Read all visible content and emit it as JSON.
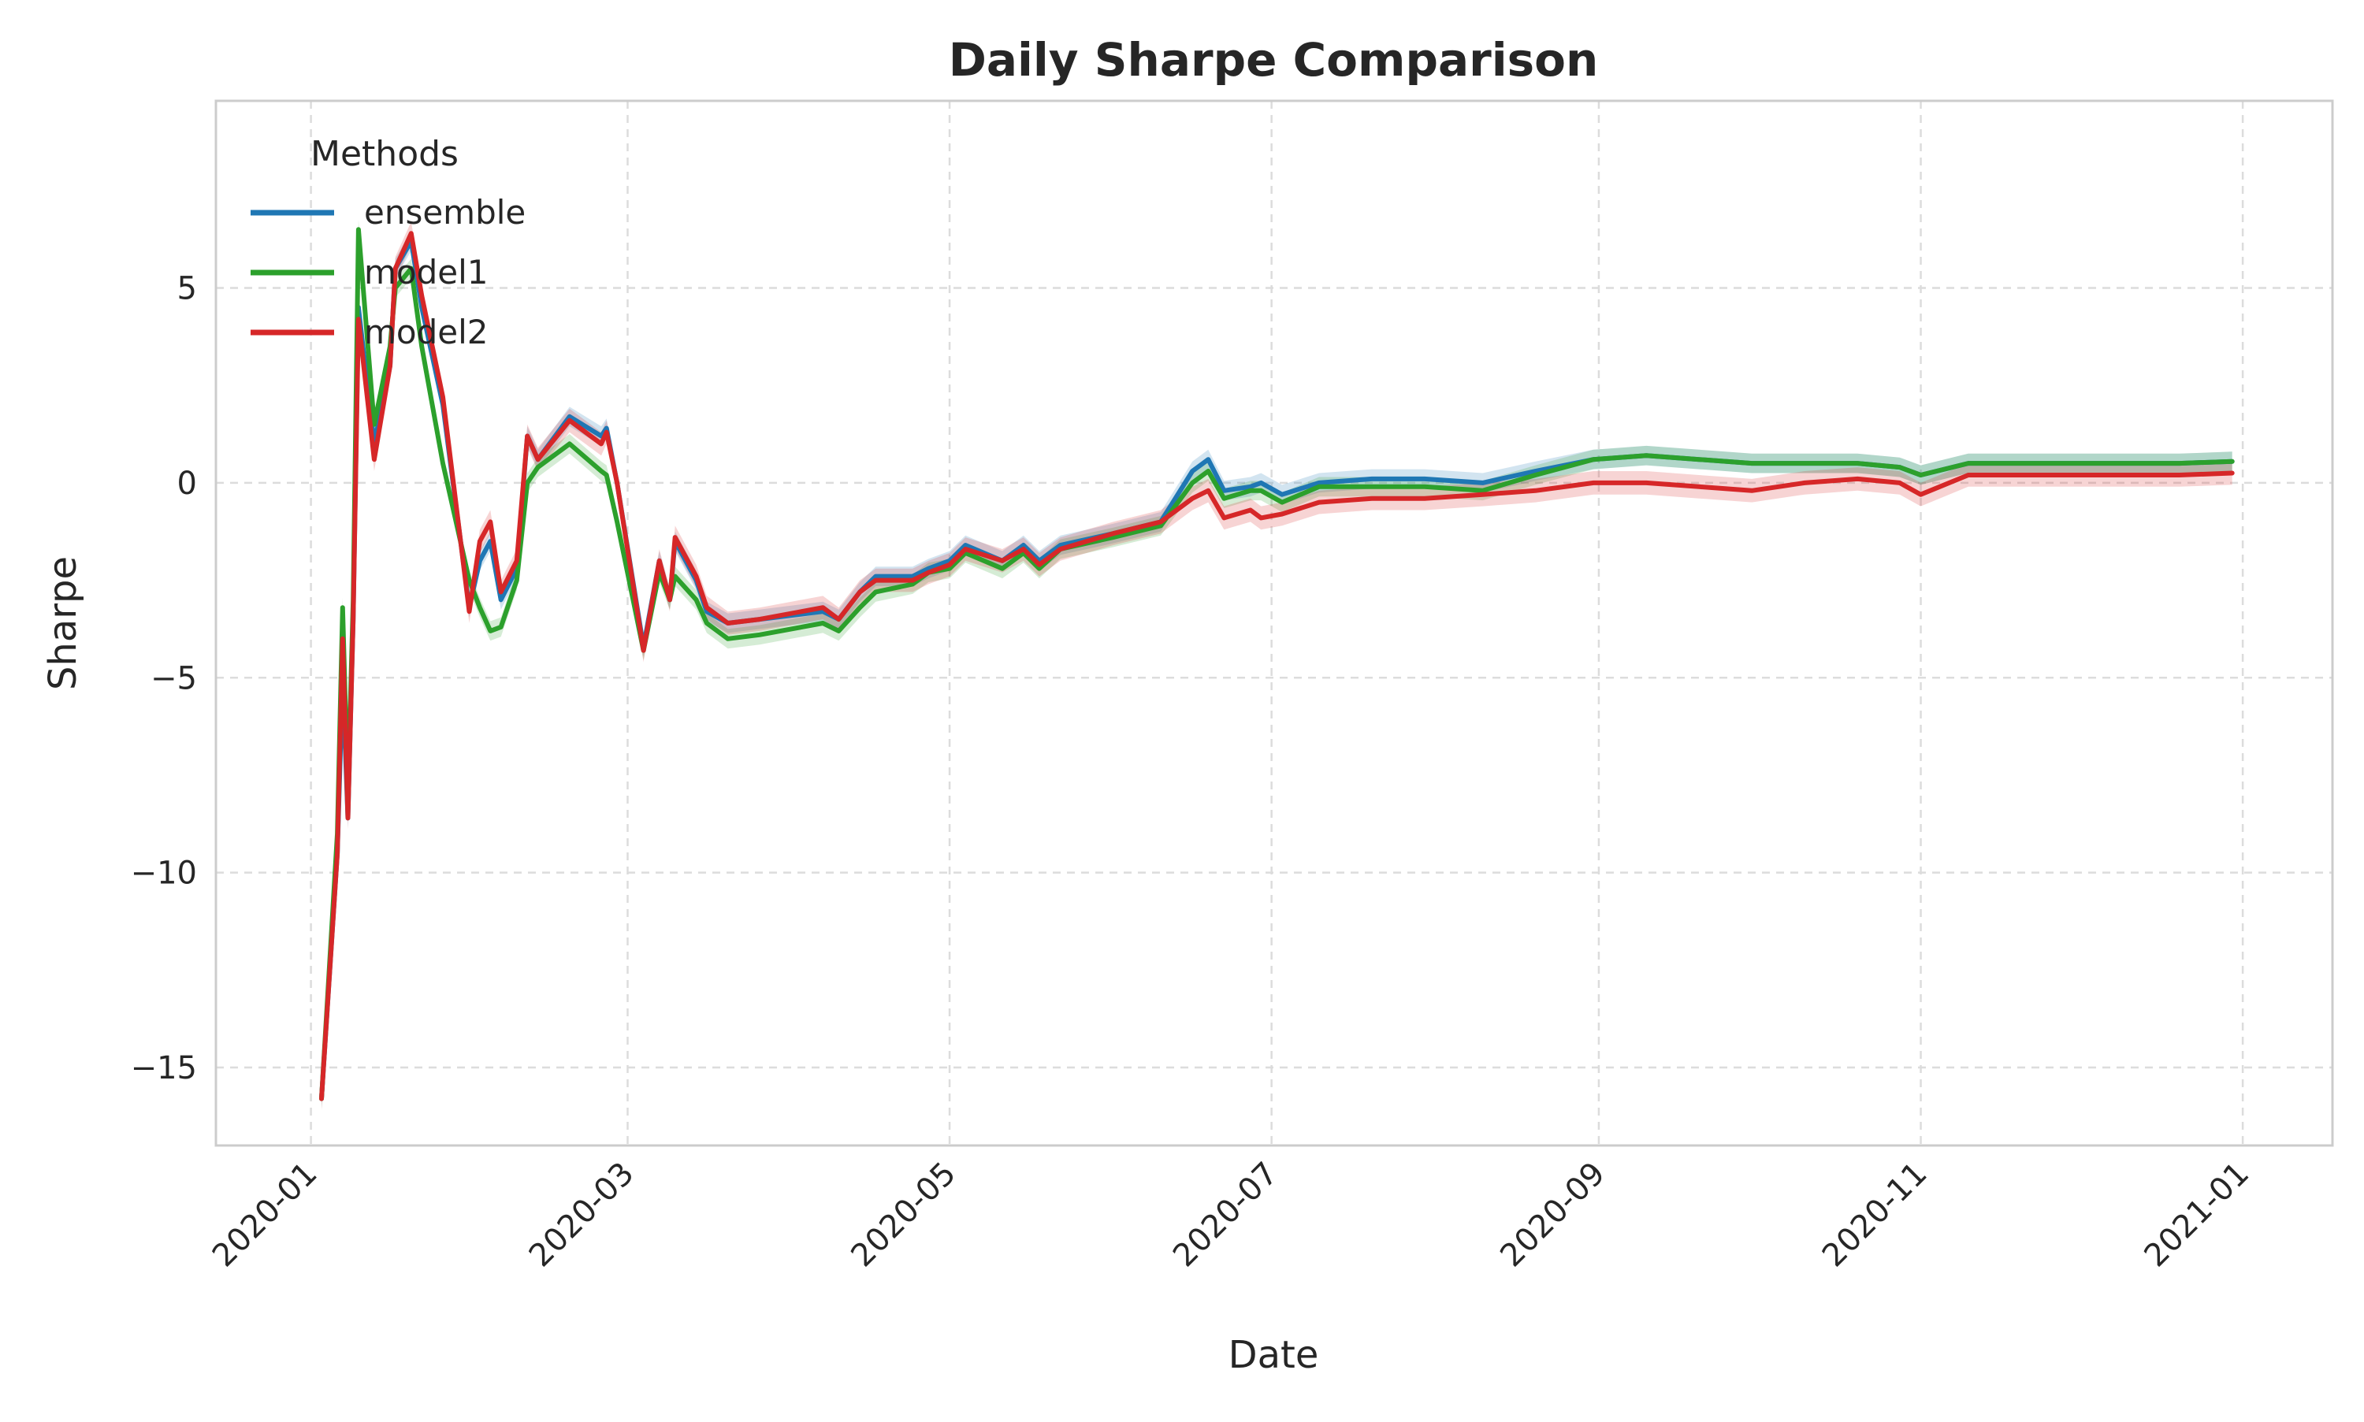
{
  "chart_data": {
    "type": "line",
    "title": "Daily Sharpe Comparison",
    "xlabel": "Date",
    "ylabel": "Sharpe",
    "x_axis_type": "date",
    "xlim": [
      "2019-12-14",
      "2021-01-18"
    ],
    "ylim": [
      -17,
      9.8
    ],
    "x_ticks": [
      "2020-01",
      "2020-03",
      "2020-05",
      "2020-07",
      "2020-09",
      "2020-11",
      "2021-01"
    ],
    "x_tick_dates": [
      "2020-01-01",
      "2020-03-01",
      "2020-05-01",
      "2020-07-01",
      "2020-09-01",
      "2020-11-01",
      "2021-01-01"
    ],
    "y_ticks": [
      -15,
      -10,
      -5,
      0,
      5
    ],
    "y_tick_labels": [
      "−15",
      "−10",
      "−5",
      "0",
      "5"
    ],
    "grid": true,
    "legend": {
      "title": "Methods",
      "placement": "top-left"
    },
    "series": [
      {
        "name": "ensemble",
        "color": "#1f77b4",
        "band_halfwidth": 0.25,
        "points": [
          [
            "2020-01-03",
            -15.8
          ],
          [
            "2020-01-06",
            -9.5
          ],
          [
            "2020-01-07",
            -5.0
          ],
          [
            "2020-01-08",
            -8.6
          ],
          [
            "2020-01-09",
            -3.5
          ],
          [
            "2020-01-10",
            4.5
          ],
          [
            "2020-01-13",
            1.0
          ],
          [
            "2020-01-16",
            3.0
          ],
          [
            "2020-01-17",
            5.5
          ],
          [
            "2020-01-20",
            6.2
          ],
          [
            "2020-01-22",
            4.5
          ],
          [
            "2020-01-26",
            2.0
          ],
          [
            "2020-01-31",
            -3.2
          ],
          [
            "2020-02-02",
            -2.0
          ],
          [
            "2020-02-04",
            -1.5
          ],
          [
            "2020-02-06",
            -3.0
          ],
          [
            "2020-02-09",
            -2.2
          ],
          [
            "2020-02-11",
            1.2
          ],
          [
            "2020-02-13",
            0.6
          ],
          [
            "2020-02-19",
            1.7
          ],
          [
            "2020-02-25",
            1.2
          ],
          [
            "2020-02-26",
            1.4
          ],
          [
            "2020-02-28",
            0.0
          ],
          [
            "2020-03-04",
            -4.2
          ],
          [
            "2020-03-07",
            -2.0
          ],
          [
            "2020-03-09",
            -3.0
          ],
          [
            "2020-03-10",
            -1.5
          ],
          [
            "2020-03-14",
            -2.5
          ],
          [
            "2020-03-16",
            -3.3
          ],
          [
            "2020-03-20",
            -3.6
          ],
          [
            "2020-03-26",
            -3.5
          ],
          [
            "2020-04-07",
            -3.3
          ],
          [
            "2020-04-10",
            -3.5
          ],
          [
            "2020-04-14",
            -2.8
          ],
          [
            "2020-04-17",
            -2.4
          ],
          [
            "2020-04-24",
            -2.4
          ],
          [
            "2020-04-27",
            -2.2
          ],
          [
            "2020-05-01",
            -2.0
          ],
          [
            "2020-05-04",
            -1.6
          ],
          [
            "2020-05-11",
            -2.0
          ],
          [
            "2020-05-15",
            -1.6
          ],
          [
            "2020-05-18",
            -2.0
          ],
          [
            "2020-05-22",
            -1.6
          ],
          [
            "2020-06-01",
            -1.3
          ],
          [
            "2020-06-10",
            -1.0
          ],
          [
            "2020-06-16",
            0.3
          ],
          [
            "2020-06-19",
            0.6
          ],
          [
            "2020-06-22",
            -0.2
          ],
          [
            "2020-06-27",
            -0.1
          ],
          [
            "2020-06-29",
            0.0
          ],
          [
            "2020-07-03",
            -0.3
          ],
          [
            "2020-07-10",
            0.0
          ],
          [
            "2020-07-20",
            0.1
          ],
          [
            "2020-07-30",
            0.1
          ],
          [
            "2020-08-10",
            0.0
          ],
          [
            "2020-08-20",
            0.3
          ],
          [
            "2020-08-31",
            0.6
          ],
          [
            "2020-09-10",
            0.7
          ],
          [
            "2020-09-20",
            0.6
          ],
          [
            "2020-09-30",
            0.5
          ],
          [
            "2020-10-10",
            0.5
          ],
          [
            "2020-10-20",
            0.5
          ],
          [
            "2020-10-28",
            0.4
          ],
          [
            "2020-11-01",
            0.2
          ],
          [
            "2020-11-10",
            0.5
          ],
          [
            "2020-11-20",
            0.5
          ],
          [
            "2020-12-01",
            0.5
          ],
          [
            "2020-12-10",
            0.5
          ],
          [
            "2020-12-20",
            0.5
          ],
          [
            "2020-12-30",
            0.55
          ]
        ]
      },
      {
        "name": "model1",
        "color": "#2ca02c",
        "band_halfwidth": 0.25,
        "points": [
          [
            "2020-01-03",
            -15.8
          ],
          [
            "2020-01-06",
            -9.0
          ],
          [
            "2020-01-07",
            -3.2
          ],
          [
            "2020-01-08",
            -8.0
          ],
          [
            "2020-01-09",
            -3.0
          ],
          [
            "2020-01-10",
            6.5
          ],
          [
            "2020-01-13",
            1.5
          ],
          [
            "2020-01-16",
            3.5
          ],
          [
            "2020-01-17",
            5.0
          ],
          [
            "2020-01-20",
            5.5
          ],
          [
            "2020-01-22",
            3.5
          ],
          [
            "2020-01-26",
            0.5
          ],
          [
            "2020-01-31",
            -2.5
          ],
          [
            "2020-02-02",
            -3.2
          ],
          [
            "2020-02-04",
            -3.8
          ],
          [
            "2020-02-06",
            -3.7
          ],
          [
            "2020-02-09",
            -2.5
          ],
          [
            "2020-02-11",
            0.0
          ],
          [
            "2020-02-13",
            0.4
          ],
          [
            "2020-02-19",
            1.0
          ],
          [
            "2020-02-25",
            0.3
          ],
          [
            "2020-02-26",
            0.2
          ],
          [
            "2020-02-28",
            -1.0
          ],
          [
            "2020-03-04",
            -4.3
          ],
          [
            "2020-03-07",
            -2.3
          ],
          [
            "2020-03-09",
            -3.0
          ],
          [
            "2020-03-10",
            -2.4
          ],
          [
            "2020-03-14",
            -3.0
          ],
          [
            "2020-03-16",
            -3.6
          ],
          [
            "2020-03-20",
            -4.0
          ],
          [
            "2020-03-26",
            -3.9
          ],
          [
            "2020-04-07",
            -3.6
          ],
          [
            "2020-04-10",
            -3.8
          ],
          [
            "2020-04-14",
            -3.2
          ],
          [
            "2020-04-17",
            -2.8
          ],
          [
            "2020-04-24",
            -2.6
          ],
          [
            "2020-04-27",
            -2.3
          ],
          [
            "2020-05-01",
            -2.2
          ],
          [
            "2020-05-04",
            -1.8
          ],
          [
            "2020-05-11",
            -2.2
          ],
          [
            "2020-05-15",
            -1.8
          ],
          [
            "2020-05-18",
            -2.2
          ],
          [
            "2020-05-22",
            -1.7
          ],
          [
            "2020-06-01",
            -1.4
          ],
          [
            "2020-06-10",
            -1.1
          ],
          [
            "2020-06-16",
            0.0
          ],
          [
            "2020-06-19",
            0.3
          ],
          [
            "2020-06-22",
            -0.4
          ],
          [
            "2020-06-27",
            -0.2
          ],
          [
            "2020-06-29",
            -0.2
          ],
          [
            "2020-07-03",
            -0.5
          ],
          [
            "2020-07-10",
            -0.1
          ],
          [
            "2020-07-20",
            -0.1
          ],
          [
            "2020-07-30",
            -0.1
          ],
          [
            "2020-08-10",
            -0.2
          ],
          [
            "2020-08-20",
            0.2
          ],
          [
            "2020-08-31",
            0.6
          ],
          [
            "2020-09-10",
            0.7
          ],
          [
            "2020-09-20",
            0.6
          ],
          [
            "2020-09-30",
            0.5
          ],
          [
            "2020-10-10",
            0.5
          ],
          [
            "2020-10-20",
            0.5
          ],
          [
            "2020-10-28",
            0.4
          ],
          [
            "2020-11-01",
            0.2
          ],
          [
            "2020-11-10",
            0.5
          ],
          [
            "2020-11-20",
            0.5
          ],
          [
            "2020-12-01",
            0.5
          ],
          [
            "2020-12-10",
            0.5
          ],
          [
            "2020-12-20",
            0.5
          ],
          [
            "2020-12-30",
            0.55
          ]
        ]
      },
      {
        "name": "model2",
        "color": "#d62728",
        "band_halfwidth": 0.3,
        "points": [
          [
            "2020-01-03",
            -15.8
          ],
          [
            "2020-01-06",
            -9.5
          ],
          [
            "2020-01-07",
            -4.0
          ],
          [
            "2020-01-08",
            -8.6
          ],
          [
            "2020-01-09",
            -3.5
          ],
          [
            "2020-01-10",
            4.2
          ],
          [
            "2020-01-13",
            0.6
          ],
          [
            "2020-01-16",
            3.0
          ],
          [
            "2020-01-17",
            5.5
          ],
          [
            "2020-01-20",
            6.4
          ],
          [
            "2020-01-22",
            4.8
          ],
          [
            "2020-01-26",
            2.2
          ],
          [
            "2020-01-31",
            -3.3
          ],
          [
            "2020-02-02",
            -1.5
          ],
          [
            "2020-02-04",
            -1.0
          ],
          [
            "2020-02-06",
            -2.8
          ],
          [
            "2020-02-09",
            -2.0
          ],
          [
            "2020-02-11",
            1.2
          ],
          [
            "2020-02-13",
            0.6
          ],
          [
            "2020-02-19",
            1.6
          ],
          [
            "2020-02-25",
            1.0
          ],
          [
            "2020-02-26",
            1.3
          ],
          [
            "2020-02-28",
            0.0
          ],
          [
            "2020-03-04",
            -4.3
          ],
          [
            "2020-03-07",
            -2.0
          ],
          [
            "2020-03-09",
            -3.0
          ],
          [
            "2020-03-10",
            -1.4
          ],
          [
            "2020-03-14",
            -2.4
          ],
          [
            "2020-03-16",
            -3.2
          ],
          [
            "2020-03-20",
            -3.6
          ],
          [
            "2020-03-26",
            -3.5
          ],
          [
            "2020-04-07",
            -3.2
          ],
          [
            "2020-04-10",
            -3.5
          ],
          [
            "2020-04-14",
            -2.8
          ],
          [
            "2020-04-17",
            -2.5
          ],
          [
            "2020-04-24",
            -2.5
          ],
          [
            "2020-04-27",
            -2.3
          ],
          [
            "2020-05-01",
            -2.1
          ],
          [
            "2020-05-04",
            -1.7
          ],
          [
            "2020-05-11",
            -2.0
          ],
          [
            "2020-05-15",
            -1.7
          ],
          [
            "2020-05-18",
            -2.1
          ],
          [
            "2020-05-22",
            -1.7
          ],
          [
            "2020-06-01",
            -1.3
          ],
          [
            "2020-06-10",
            -1.0
          ],
          [
            "2020-06-16",
            -0.4
          ],
          [
            "2020-06-19",
            -0.2
          ],
          [
            "2020-06-22",
            -0.9
          ],
          [
            "2020-06-27",
            -0.7
          ],
          [
            "2020-06-29",
            -0.9
          ],
          [
            "2020-07-03",
            -0.8
          ],
          [
            "2020-07-10",
            -0.5
          ],
          [
            "2020-07-20",
            -0.4
          ],
          [
            "2020-07-30",
            -0.4
          ],
          [
            "2020-08-10",
            -0.3
          ],
          [
            "2020-08-20",
            -0.2
          ],
          [
            "2020-08-31",
            0.0
          ],
          [
            "2020-09-10",
            0.0
          ],
          [
            "2020-09-20",
            -0.1
          ],
          [
            "2020-09-30",
            -0.2
          ],
          [
            "2020-10-10",
            0.0
          ],
          [
            "2020-10-20",
            0.1
          ],
          [
            "2020-10-28",
            0.0
          ],
          [
            "2020-11-01",
            -0.3
          ],
          [
            "2020-11-10",
            0.2
          ],
          [
            "2020-11-20",
            0.2
          ],
          [
            "2020-12-01",
            0.2
          ],
          [
            "2020-12-10",
            0.2
          ],
          [
            "2020-12-20",
            0.2
          ],
          [
            "2020-12-30",
            0.25
          ]
        ]
      }
    ]
  }
}
